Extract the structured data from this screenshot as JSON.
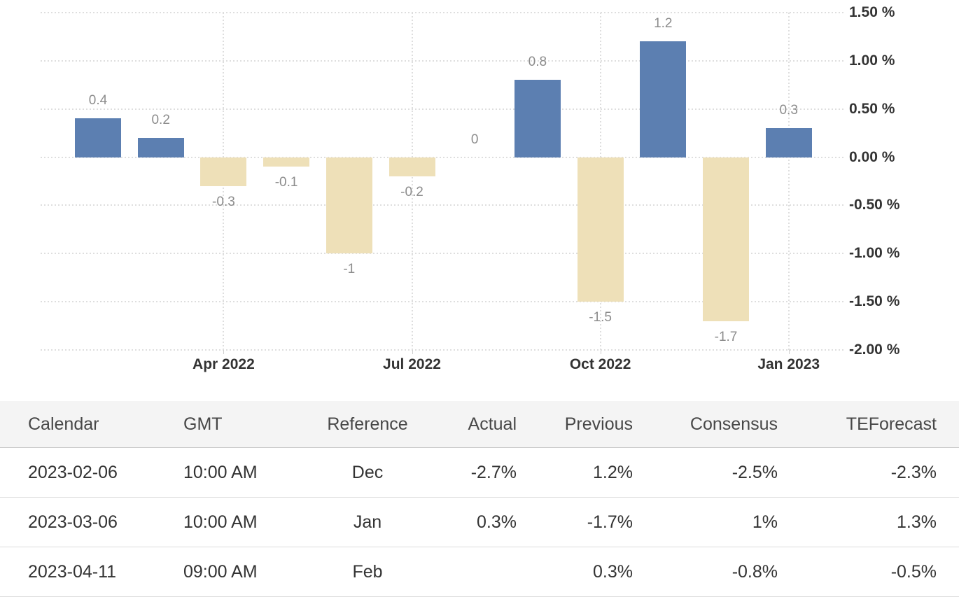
{
  "chart_data": {
    "type": "bar",
    "values": [
      0.4,
      0.2,
      -0.3,
      -0.1,
      -1,
      -0.2,
      0,
      0.8,
      -1.5,
      1.2,
      -1.7,
      0.3
    ],
    "bar_labels": [
      "0.4",
      "0.2",
      "-0.3",
      "-0.1",
      "-1",
      "-0.2",
      "0",
      "0.8",
      "-1.5",
      "1.2",
      "-1.7",
      "0.3"
    ],
    "x_tick_labels": [
      "Apr 2022",
      "Jul 2022",
      "Oct 2022",
      "Jan 2023"
    ],
    "x_tick_bar_indices": [
      2,
      5,
      8,
      11
    ],
    "y_tick_labels": [
      "1.50 %",
      "1.00 %",
      "0.50 %",
      "0.00 %",
      "-0.50 %",
      "-1.00 %",
      "-1.50 %",
      "-2.00 %"
    ],
    "y_tick_values": [
      1.5,
      1,
      0.5,
      0,
      -0.5,
      -1,
      -1.5,
      -2
    ],
    "ylim": [
      -2,
      1.5
    ],
    "grid": "dotted",
    "legend_position": "none",
    "colors": {
      "positive_bar": "#5c7fb1",
      "negative_bar": "#eee0b8",
      "grid": "#dedede",
      "bar_label": "#8c8c8c",
      "axis_text": "#333333"
    }
  },
  "table": {
    "columns": [
      {
        "label": "Calendar",
        "align": "left"
      },
      {
        "label": "GMT",
        "align": "left"
      },
      {
        "label": "Reference",
        "align": "center"
      },
      {
        "label": "Actual",
        "align": "right"
      },
      {
        "label": "Previous",
        "align": "right"
      },
      {
        "label": "Consensus",
        "align": "right"
      },
      {
        "label": "TEForecast",
        "align": "right"
      }
    ],
    "rows": [
      [
        "2023-02-06",
        "10:00 AM",
        "Dec",
        "-2.7%",
        "1.2%",
        "-2.5%",
        "-2.3%"
      ],
      [
        "2023-03-06",
        "10:00 AM",
        "Jan",
        "0.3%",
        "-1.7%",
        "1%",
        "1.3%"
      ],
      [
        "2023-04-11",
        "09:00 AM",
        "Feb",
        "",
        "0.3%",
        "-0.8%",
        "-0.5%"
      ]
    ]
  }
}
